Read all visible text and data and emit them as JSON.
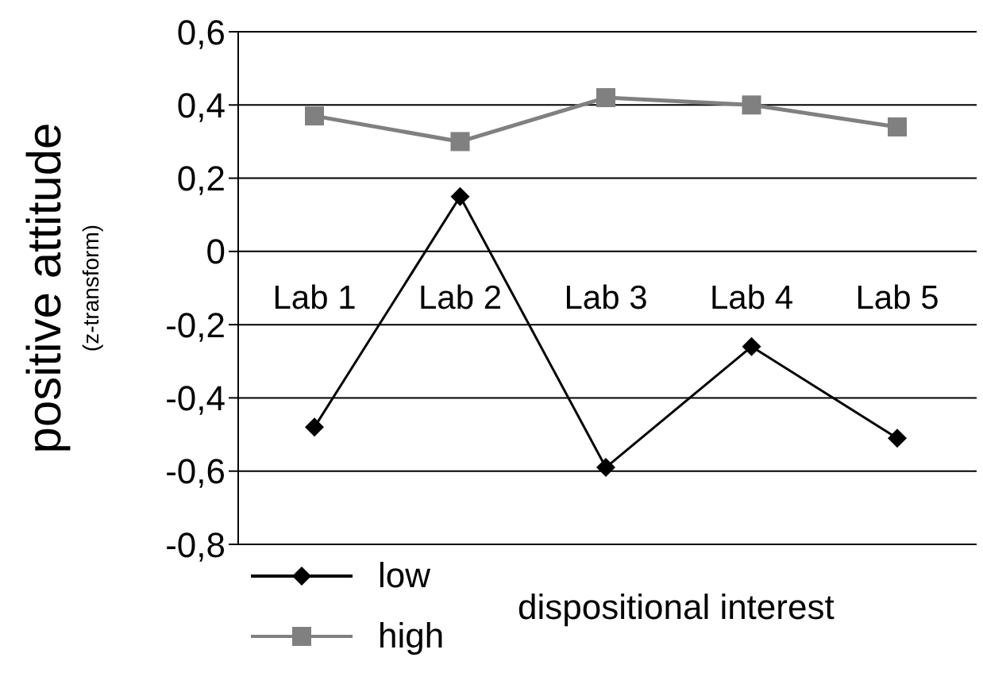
{
  "chart_data": {
    "type": "line",
    "ylabel": "positive attitude $_{(z-transform)}$",
    "legend_title": "dispositional interest",
    "categories": [
      "Lab 1",
      "Lab 2",
      "Lab 3",
      "Lab 4",
      "Lab 5"
    ],
    "series": [
      {
        "name": "low",
        "color": "#000000",
        "marker": "diamond",
        "values": [
          -0.48,
          0.15,
          -0.59,
          -0.26,
          -0.51
        ]
      },
      {
        "name": "high",
        "color": "#808080",
        "marker": "square",
        "values": [
          0.37,
          0.3,
          0.42,
          0.4,
          0.34
        ]
      }
    ],
    "ylim": [
      -0.8,
      0.6
    ],
    "yticks": [
      {
        "value": -0.8,
        "label": "-0,8"
      },
      {
        "value": -0.6,
        "label": "-0,6"
      },
      {
        "value": -0.4,
        "label": "-0,4"
      },
      {
        "value": -0.2,
        "label": "-0,2"
      },
      {
        "value": 0,
        "label": "0"
      },
      {
        "value": 0.2,
        "label": "0,2"
      },
      {
        "value": 0.4,
        "label": "0,4"
      },
      {
        "value": 0.6,
        "label": "0,6"
      }
    ],
    "grid": "y",
    "legend": "bottom"
  }
}
